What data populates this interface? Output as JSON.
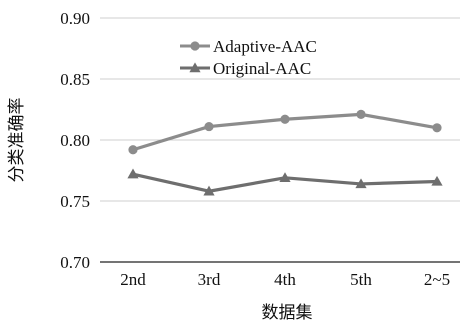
{
  "chart_data": {
    "type": "line",
    "title": "",
    "xlabel": "数据集",
    "ylabel": "分类准确率",
    "categories": [
      "2nd",
      "3rd",
      "4th",
      "5th",
      "2~5"
    ],
    "y_ticks": [
      "0.70",
      "0.75",
      "0.80",
      "0.85",
      "0.90"
    ],
    "ylim": [
      0.7,
      0.9
    ],
    "grid": "horizontal",
    "legend_position": "top-left",
    "series": [
      {
        "name": "Adaptive-AAC",
        "marker": "circle",
        "color": "#8c8c8c",
        "values": [
          0.792,
          0.811,
          0.817,
          0.821,
          0.81
        ]
      },
      {
        "name": "Original-AAC",
        "marker": "triangle",
        "color": "#6e6e6e",
        "values": [
          0.772,
          0.758,
          0.769,
          0.764,
          0.766
        ]
      }
    ]
  }
}
